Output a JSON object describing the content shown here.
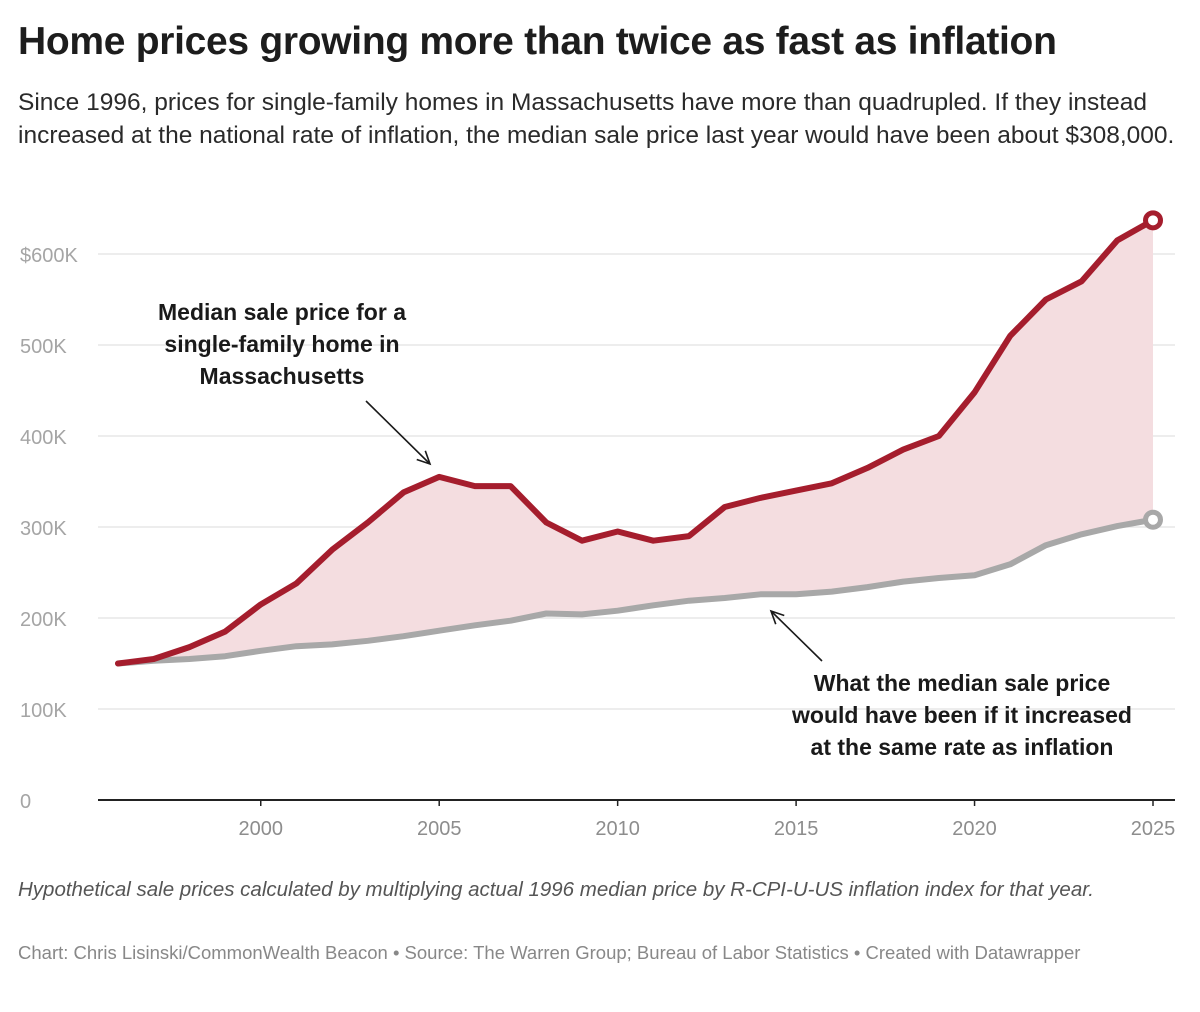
{
  "header": {
    "title": "Home prices growing more than twice as fast as inflation",
    "subtitle": "Since 1996, prices for single-family homes in Massachusetts have more than quadrupled. If they instead increased at the national rate of inflation, the median sale price last year would have been about $308,000."
  },
  "footer": {
    "note": "Hypothetical sale prices calculated by multiplying actual 1996 median price by R-CPI-U-US inflation index for that year.",
    "credit": "Chart: Chris Lisinski/CommonWealth Beacon • Source: The Warren Group; Bureau of Labor Statistics • Created with Datawrapper"
  },
  "chart_data": {
    "type": "line",
    "title": "",
    "xlabel": "",
    "ylabel": "",
    "xlim": [
      1996,
      2025
    ],
    "ylim": [
      0,
      650000
    ],
    "x_ticks": [
      2000,
      2005,
      2010,
      2015,
      2020,
      2025
    ],
    "x_tick_labels": [
      "2000",
      "2005",
      "2010",
      "2015",
      "2020",
      "2025"
    ],
    "y_ticks": [
      0,
      100000,
      200000,
      300000,
      400000,
      500000,
      600000
    ],
    "y_tick_labels": [
      "0",
      "100K",
      "200K",
      "300K",
      "400K",
      "500K",
      "$600K"
    ],
    "grid": true,
    "x": [
      1996,
      1997,
      1998,
      1999,
      2000,
      2001,
      2002,
      2003,
      2004,
      2005,
      2006,
      2007,
      2008,
      2009,
      2010,
      2011,
      2012,
      2013,
      2014,
      2015,
      2016,
      2017,
      2018,
      2019,
      2020,
      2021,
      2022,
      2023,
      2024,
      2025
    ],
    "series": [
      {
        "name": "Median sale price for a single-family home in Massachusetts",
        "color": "#a51d2d",
        "values": [
          150000,
          155000,
          168000,
          185000,
          215000,
          238000,
          275000,
          305000,
          338000,
          355000,
          345000,
          345000,
          305000,
          285000,
          295000,
          285000,
          290000,
          322000,
          332000,
          340000,
          348000,
          365000,
          385000,
          400000,
          448000,
          510000,
          550000,
          570000,
          615000,
          637000
        ]
      },
      {
        "name": "What the median sale price would have been if it increased at the same rate as inflation",
        "color": "#a8a8a8",
        "values": [
          150000,
          153000,
          155000,
          158000,
          164000,
          169000,
          171000,
          175000,
          180000,
          186000,
          192000,
          197000,
          205000,
          204000,
          208000,
          214000,
          219000,
          222000,
          226000,
          226000,
          229000,
          234000,
          240000,
          244000,
          247000,
          259000,
          280000,
          292000,
          301000,
          308000
        ]
      }
    ],
    "area_fill": "#f4dde0",
    "annotations": [
      {
        "text": "Median sale price for a single-family home in Massachusetts",
        "lines": [
          "Median sale price for a",
          "single-family home in",
          "Massachusetts"
        ],
        "points_to_year": 2005
      },
      {
        "text": "What the median sale price would have been if it increased at the same rate as inflation",
        "lines": [
          "What the median sale price",
          "would have been if it increased",
          "at the same rate as inflation"
        ],
        "points_to_year": 2014
      }
    ]
  }
}
